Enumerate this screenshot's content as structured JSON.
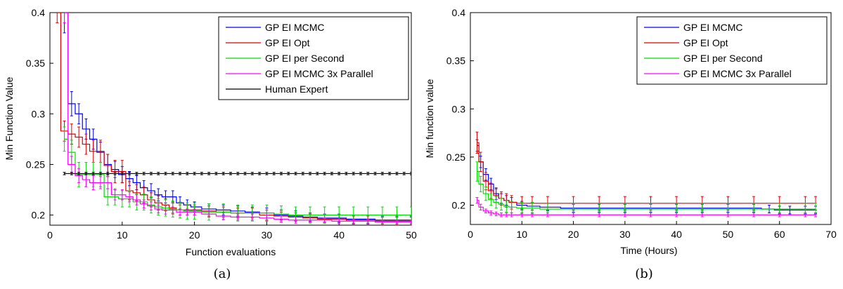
{
  "chart_data": [
    {
      "type": "line",
      "caption": "(a)",
      "xlabel": "Function evaluations",
      "ylabel": "Min Function Value",
      "xlim": [
        0,
        50
      ],
      "ylim": [
        0.19,
        0.4
      ],
      "xticks": [
        0,
        10,
        20,
        30,
        40,
        50
      ],
      "yticks": [
        0.2,
        0.25,
        0.3,
        0.35,
        0.4
      ],
      "ytick_labels": [
        "0.2",
        "0.25",
        "0.3",
        "0.35",
        "0.4"
      ],
      "legend_position": "top-right",
      "series": [
        {
          "name": "GP EI MCMC",
          "color": "#0000ff",
          "x": [
            2,
            3,
            4,
            5,
            6,
            7,
            8,
            9,
            10,
            11,
            12,
            13,
            14,
            15,
            16,
            17,
            18,
            19,
            20,
            22,
            24,
            26,
            28,
            30,
            32,
            34,
            36,
            38,
            40,
            42,
            44,
            46,
            48,
            50
          ],
          "y": [
            0.4,
            0.31,
            0.3,
            0.285,
            0.275,
            0.262,
            0.25,
            0.245,
            0.24,
            0.236,
            0.232,
            0.227,
            0.224,
            0.22,
            0.218,
            0.218,
            0.212,
            0.21,
            0.208,
            0.206,
            0.205,
            0.204,
            0.203,
            0.202,
            0.2,
            0.199,
            0.198,
            0.197,
            0.197,
            0.196,
            0.196,
            0.195,
            0.195,
            0.195
          ],
          "err": [
            0.02,
            0.012,
            0.01,
            0.01,
            0.01,
            0.01,
            0.01,
            0.008,
            0.008,
            0.007,
            0.007,
            0.007,
            0.007,
            0.006,
            0.006,
            0.006,
            0.006,
            0.005,
            0.005,
            0.005,
            0.005,
            0.005,
            0.005,
            0.005,
            0.005,
            0.005,
            0.004,
            0.004,
            0.004,
            0.004,
            0.004,
            0.004,
            0.004,
            0.004
          ]
        },
        {
          "name": "GP EI Opt",
          "color": "#dd0000",
          "x": [
            1,
            2,
            3,
            4,
            5,
            6,
            7,
            8,
            9,
            10,
            11,
            12,
            13,
            14,
            15,
            16,
            17,
            18,
            19,
            20,
            22,
            24,
            26,
            28,
            30,
            32,
            34,
            36,
            38,
            40,
            42,
            44,
            46,
            48,
            50
          ],
          "y": [
            0.4,
            0.283,
            0.28,
            0.277,
            0.27,
            0.263,
            0.263,
            0.249,
            0.243,
            0.243,
            0.224,
            0.222,
            0.22,
            0.215,
            0.212,
            0.21,
            0.207,
            0.205,
            0.205,
            0.205,
            0.204,
            0.203,
            0.202,
            0.202,
            0.2,
            0.199,
            0.198,
            0.197,
            0.196,
            0.196,
            0.195,
            0.195,
            0.194,
            0.194,
            0.194
          ],
          "err": [
            0.01,
            0.01,
            0.01,
            0.01,
            0.01,
            0.011,
            0.011,
            0.011,
            0.011,
            0.011,
            0.009,
            0.008,
            0.008,
            0.007,
            0.007,
            0.006,
            0.006,
            0.005,
            0.005,
            0.005,
            0.005,
            0.005,
            0.005,
            0.005,
            0.005,
            0.004,
            0.004,
            0.004,
            0.004,
            0.004,
            0.004,
            0.004,
            0.004,
            0.004,
            0.004
          ]
        },
        {
          "name": "GP EI per Second",
          "color": "#00dd00",
          "x": [
            2,
            3,
            4,
            5,
            6,
            7,
            8,
            9,
            10,
            11,
            12,
            13,
            14,
            15,
            16,
            17,
            18,
            19,
            20,
            22,
            24,
            26,
            28,
            30,
            32,
            34,
            36,
            38,
            40,
            42,
            44,
            46,
            48,
            50
          ],
          "y": [
            0.275,
            0.262,
            0.24,
            0.24,
            0.24,
            0.24,
            0.218,
            0.218,
            0.216,
            0.216,
            0.213,
            0.213,
            0.21,
            0.208,
            0.207,
            0.206,
            0.205,
            0.204,
            0.204,
            0.203,
            0.203,
            0.202,
            0.202,
            0.202,
            0.201,
            0.2,
            0.2,
            0.2,
            0.2,
            0.2,
            0.2,
            0.2,
            0.2,
            0.2
          ],
          "err": [
            0.012,
            0.012,
            0.012,
            0.012,
            0.012,
            0.012,
            0.008,
            0.008,
            0.008,
            0.008,
            0.008,
            0.008,
            0.008,
            0.008,
            0.008,
            0.008,
            0.008,
            0.008,
            0.008,
            0.008,
            0.008,
            0.008,
            0.008,
            0.008,
            0.008,
            0.008,
            0.008,
            0.008,
            0.008,
            0.008,
            0.008,
            0.008,
            0.008,
            0.008
          ]
        },
        {
          "name": "GP EI MCMC 3x Parallel",
          "color": "#ff00ff",
          "x": [
            2,
            3,
            4,
            5,
            6,
            7,
            8,
            9,
            10,
            11,
            12,
            13,
            14,
            15,
            16,
            17,
            18,
            19,
            20,
            22,
            24,
            26,
            28,
            30,
            32,
            34,
            36,
            38,
            40,
            42,
            44,
            46,
            48,
            50
          ],
          "y": [
            0.4,
            0.25,
            0.239,
            0.235,
            0.232,
            0.232,
            0.232,
            0.22,
            0.22,
            0.218,
            0.215,
            0.211,
            0.209,
            0.206,
            0.205,
            0.205,
            0.203,
            0.203,
            0.203,
            0.201,
            0.199,
            0.198,
            0.198,
            0.197,
            0.196,
            0.195,
            0.195,
            0.195,
            0.194,
            0.194,
            0.194,
            0.193,
            0.193,
            0.193
          ],
          "err": [
            0.01,
            0.008,
            0.007,
            0.007,
            0.007,
            0.006,
            0.006,
            0.005,
            0.005,
            0.005,
            0.005,
            0.004,
            0.004,
            0.004,
            0.004,
            0.003,
            0.003,
            0.003,
            0.003,
            0.003,
            0.003,
            0.003,
            0.003,
            0.003,
            0.003,
            0.003,
            0.002,
            0.002,
            0.002,
            0.002,
            0.002,
            0.002,
            0.002,
            0.002
          ]
        },
        {
          "name": "Human Expert",
          "color": "#000000",
          "x": [
            2,
            3,
            4,
            5,
            6,
            7,
            8,
            9,
            10,
            11,
            12,
            13,
            14,
            15,
            16,
            17,
            18,
            19,
            20,
            21,
            22,
            23,
            24,
            25,
            26,
            27,
            28,
            29,
            30,
            31,
            32,
            33,
            34,
            35,
            36,
            37,
            38,
            39,
            40,
            41,
            42,
            43,
            44,
            45,
            46,
            47,
            48,
            49,
            50
          ],
          "y": [
            0.241,
            0.241,
            0.241,
            0.241,
            0.241,
            0.241,
            0.241,
            0.241,
            0.241,
            0.241,
            0.241,
            0.241,
            0.241,
            0.241,
            0.241,
            0.241,
            0.241,
            0.241,
            0.241,
            0.241,
            0.241,
            0.241,
            0.241,
            0.241,
            0.241,
            0.241,
            0.241,
            0.241,
            0.241,
            0.241,
            0.241,
            0.241,
            0.241,
            0.241,
            0.241,
            0.241,
            0.241,
            0.241,
            0.241,
            0.241,
            0.241,
            0.241,
            0.241,
            0.241,
            0.241,
            0.241,
            0.241,
            0.241,
            0.241
          ],
          "err": [
            0.0012,
            0.0012,
            0.0012,
            0.0012,
            0.0012,
            0.0012,
            0.0012,
            0.0012,
            0.0012,
            0.0012,
            0.0012,
            0.0012,
            0.0012,
            0.0012,
            0.0012,
            0.0012,
            0.0012,
            0.0012,
            0.0012,
            0.0012,
            0.0012,
            0.0012,
            0.0012,
            0.0012,
            0.0012,
            0.0012,
            0.0012,
            0.0012,
            0.0012,
            0.0012,
            0.0012,
            0.0012,
            0.0012,
            0.0012,
            0.0012,
            0.0012,
            0.0012,
            0.0012,
            0.0012,
            0.0012,
            0.0012,
            0.0012,
            0.0012,
            0.0012,
            0.0012,
            0.0012,
            0.0012,
            0.0012,
            0.0012
          ]
        }
      ]
    },
    {
      "type": "line",
      "caption": "(b)",
      "xlabel": "Time (Hours)",
      "ylabel": "Min function value",
      "xlim": [
        0,
        70
      ],
      "ylim": [
        0.18,
        0.4
      ],
      "xticks": [
        0,
        10,
        20,
        30,
        40,
        50,
        60,
        70
      ],
      "yticks": [
        0.2,
        0.25,
        0.3,
        0.35,
        0.4
      ],
      "ytick_labels": [
        "0.2",
        "0.25",
        "0.3",
        "0.35",
        "0.4"
      ],
      "legend_position": "top-right",
      "series": [
        {
          "name": "GP EI MCMC",
          "color": "#0000ff",
          "x": [
            1.3,
            2,
            3,
            4,
            5,
            6,
            7,
            8,
            10,
            12,
            15,
            20,
            25,
            30,
            35,
            40,
            45,
            50,
            55,
            58,
            60,
            62,
            65,
            67
          ],
          "y": [
            0.262,
            0.245,
            0.232,
            0.222,
            0.212,
            0.207,
            0.205,
            0.203,
            0.2,
            0.199,
            0.198,
            0.197,
            0.197,
            0.197,
            0.197,
            0.197,
            0.197,
            0.197,
            0.197,
            0.196,
            0.195,
            0.195,
            0.195,
            0.195
          ],
          "err": [
            0.006,
            0.006,
            0.006,
            0.006,
            0.006,
            0.005,
            0.005,
            0.005,
            0.004,
            0.004,
            0.004,
            0.004,
            0.004,
            0.004,
            0.004,
            0.004,
            0.004,
            0.004,
            0.004,
            0.004,
            0.004,
            0.004,
            0.004,
            0.004
          ]
        },
        {
          "name": "GP EI Opt",
          "color": "#dd0000",
          "x": [
            1.3,
            2,
            3,
            4,
            5,
            6,
            7,
            8,
            10,
            12,
            15,
            20,
            25,
            30,
            35,
            40,
            45,
            50,
            55,
            60,
            65,
            67
          ],
          "y": [
            0.265,
            0.245,
            0.225,
            0.215,
            0.21,
            0.207,
            0.205,
            0.203,
            0.202,
            0.202,
            0.202,
            0.202,
            0.202,
            0.202,
            0.202,
            0.202,
            0.202,
            0.202,
            0.202,
            0.202,
            0.202,
            0.202
          ],
          "err": [
            0.011,
            0.01,
            0.009,
            0.008,
            0.007,
            0.007,
            0.007,
            0.007,
            0.007,
            0.007,
            0.007,
            0.007,
            0.007,
            0.007,
            0.007,
            0.007,
            0.007,
            0.007,
            0.007,
            0.007,
            0.007,
            0.007
          ]
        },
        {
          "name": "GP EI per Second",
          "color": "#00dd00",
          "x": [
            1.3,
            2,
            3,
            4,
            5,
            6,
            7,
            8,
            10,
            12,
            15,
            20,
            25,
            30,
            35,
            40,
            45,
            50,
            55,
            60,
            65,
            67
          ],
          "y": [
            0.235,
            0.222,
            0.212,
            0.206,
            0.203,
            0.201,
            0.199,
            0.198,
            0.197,
            0.197,
            0.196,
            0.196,
            0.196,
            0.196,
            0.196,
            0.196,
            0.196,
            0.196,
            0.196,
            0.196,
            0.196,
            0.196
          ],
          "err": [
            0.01,
            0.008,
            0.007,
            0.006,
            0.006,
            0.006,
            0.006,
            0.006,
            0.006,
            0.006,
            0.006,
            0.006,
            0.006,
            0.006,
            0.006,
            0.006,
            0.006,
            0.006,
            0.006,
            0.006,
            0.006,
            0.006
          ]
        },
        {
          "name": "GP EI MCMC 3x Parallel",
          "color": "#ff00ff",
          "x": [
            1.3,
            2,
            3,
            4,
            5,
            6,
            7,
            8,
            10,
            12,
            15,
            20,
            25,
            30,
            35,
            40,
            45,
            50,
            55,
            60,
            65,
            67
          ],
          "y": [
            0.205,
            0.198,
            0.194,
            0.192,
            0.191,
            0.19,
            0.19,
            0.19,
            0.19,
            0.19,
            0.19,
            0.19,
            0.19,
            0.19,
            0.19,
            0.19,
            0.19,
            0.19,
            0.19,
            0.19,
            0.19,
            0.19
          ],
          "err": [
            0.003,
            0.003,
            0.002,
            0.002,
            0.002,
            0.002,
            0.002,
            0.002,
            0.002,
            0.002,
            0.002,
            0.002,
            0.002,
            0.002,
            0.002,
            0.002,
            0.002,
            0.002,
            0.002,
            0.002,
            0.002,
            0.002
          ]
        }
      ]
    }
  ]
}
